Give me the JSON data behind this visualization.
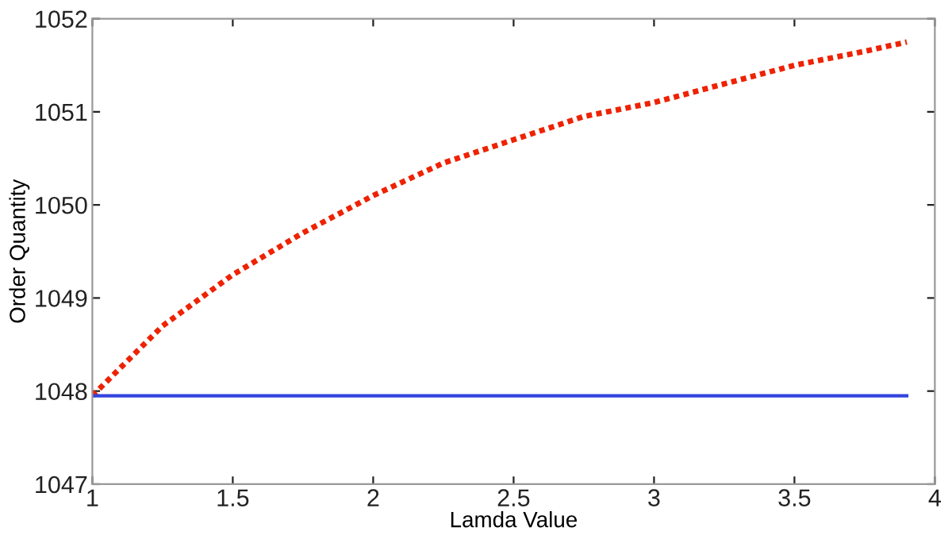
{
  "chart_data": {
    "type": "line",
    "xlabel": "Lamda Value",
    "ylabel": "Order Quantity",
    "xlim": [
      1,
      4
    ],
    "xticks": [
      1,
      1.5,
      2,
      2.5,
      3,
      3.5,
      4
    ],
    "ylim": [
      1047,
      1052
    ],
    "yticks": [
      1047,
      1048,
      1049,
      1050,
      1051,
      1052
    ],
    "grid": false,
    "legend": false,
    "series": [
      {
        "color": "#ee2200",
        "line_style": "dotted",
        "x": [
          1,
          1.25,
          1.5,
          1.75,
          2,
          2.25,
          2.5,
          2.75,
          3,
          3.25,
          3.5,
          3.75,
          3.9
        ],
        "values": [
          1047.95,
          1048.7,
          1049.25,
          1049.7,
          1050.1,
          1050.45,
          1050.7,
          1050.95,
          1051.1,
          1051.3,
          1051.5,
          1051.65,
          1051.75
        ]
      },
      {
        "color": "#3344dd",
        "line_style": "solid",
        "x": [
          1,
          3.9
        ],
        "values": [
          1047.95,
          1047.95
        ]
      }
    ]
  }
}
